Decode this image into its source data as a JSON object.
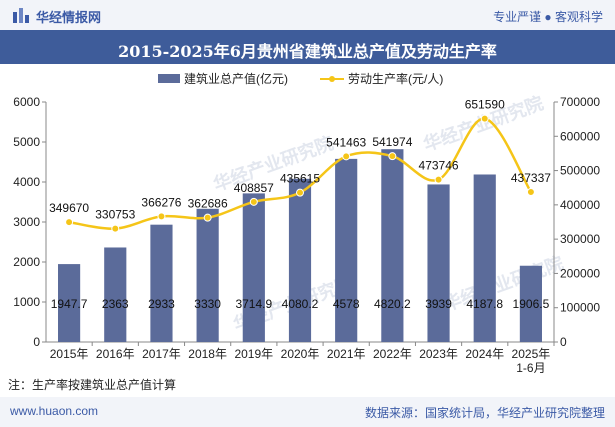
{
  "header": {
    "brand": "华经情报网",
    "tagline": "专业严谨 ● 客观科学",
    "title": "2015-2025年6月贵州省建筑业总产值及劳动生产率"
  },
  "colors": {
    "bar": "#5b6b9a",
    "line": "#f5c518",
    "banner": "#3e5c9a"
  },
  "watermark": "华经产业研究院",
  "chart_data": {
    "type": "bar+line",
    "categories": [
      "2015年",
      "2016年",
      "2017年",
      "2018年",
      "2019年",
      "2020年",
      "2021年",
      "2022年",
      "2023年",
      "2024年",
      "2025年\n1-6月"
    ],
    "series": [
      {
        "name": "建筑业总产值(亿元)",
        "type": "bar",
        "axis": "left",
        "values": [
          1947.7,
          2363,
          2933,
          3330,
          3714.9,
          4080.2,
          4578,
          4820.2,
          3939,
          4187.8,
          1906.5
        ],
        "labels": [
          "1947.7",
          "2363",
          "2933",
          "3330",
          "3714.9",
          "4080.2",
          "4578",
          "4820.2",
          "3939",
          "4187.8",
          "1906.5"
        ]
      },
      {
        "name": "劳动生产率(元/人)",
        "type": "line",
        "axis": "right",
        "values": [
          349670,
          330753,
          366276,
          362686,
          408857,
          435615,
          541463,
          541974,
          473746,
          651590,
          437337
        ],
        "labels": [
          "349670",
          "330753",
          "366276",
          "362686",
          "408857",
          "435615",
          "541463",
          "541974",
          "473746",
          "651590",
          "437337"
        ]
      }
    ],
    "y_left": {
      "min": 0,
      "max": 6000,
      "ticks": [
        "0",
        "1000",
        "2000",
        "3000",
        "4000",
        "5000",
        "6000"
      ]
    },
    "y_right": {
      "min": 0,
      "max": 700000,
      "ticks": [
        "0",
        "100000",
        "200000",
        "300000",
        "400000",
        "500000",
        "600000",
        "700000"
      ]
    },
    "legend_position": "top-center"
  },
  "footer": {
    "note": "注：生产率按建筑业总产值计算",
    "site": "www.huaon.com",
    "source": "数据来源：国家统计局，华经产业研究院整理"
  }
}
